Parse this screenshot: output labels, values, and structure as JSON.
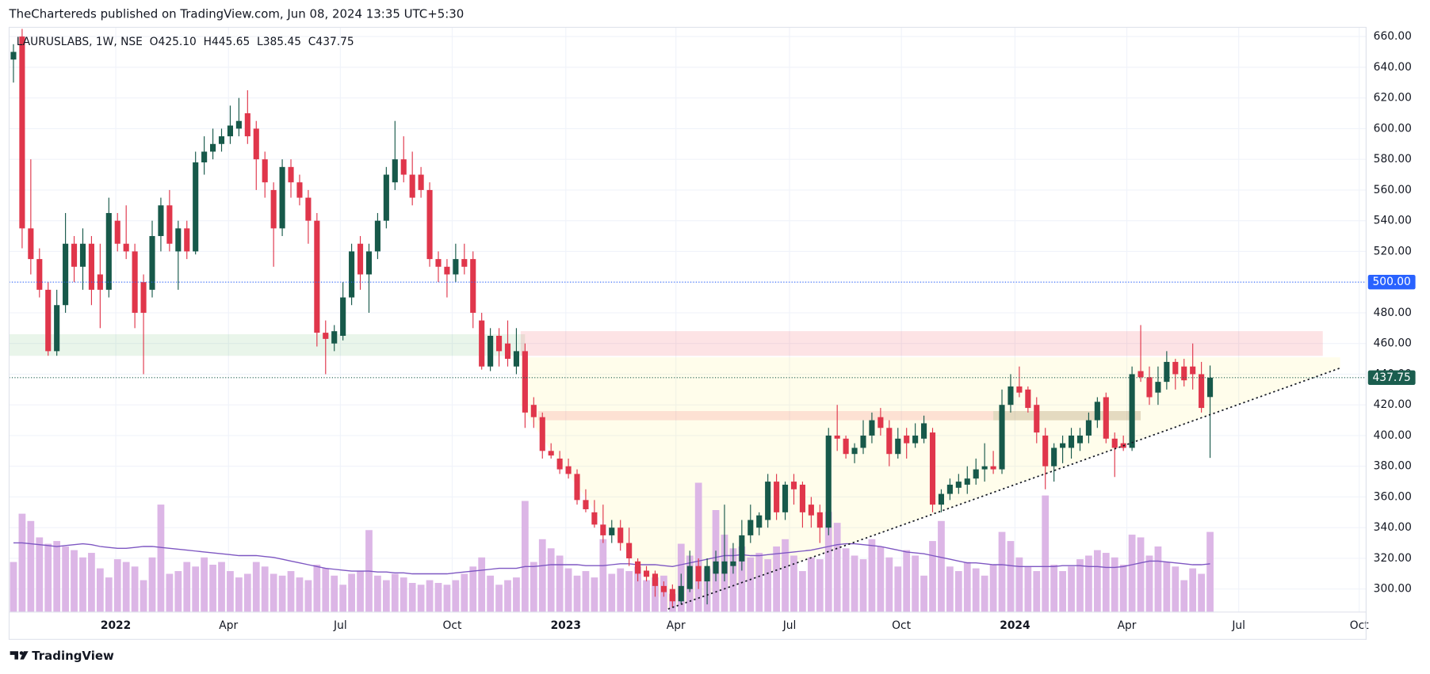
{
  "header": {
    "text": "TheChartereds published on TradingView.com, Jun 08, 2024 13:35 UTC+5:30"
  },
  "footer": {
    "brand": "TradingView"
  },
  "chart_data": {
    "type": "candlestick",
    "legend_text": "LAURUSLABS, 1W, NSE  O425.10  H445.65  L385.45  C437.75",
    "up_color": "#17594a",
    "down_color": "#e0364b",
    "volume_color": "#dcb6e6",
    "volume_ma_color": "#7e57c2",
    "grid": true,
    "xlim": [
      -0.5,
      156
    ],
    "ylim": [
      285,
      666
    ],
    "volume_ylim": [
      0,
      642
    ],
    "yticks": [
      {
        "value": 300,
        "label": "300.00"
      },
      {
        "value": 320,
        "label": "320.00"
      },
      {
        "value": 340,
        "label": "340.00"
      },
      {
        "value": 360,
        "label": "360.00"
      },
      {
        "value": 380,
        "label": "380.00"
      },
      {
        "value": 400,
        "label": "400.00"
      },
      {
        "value": 420,
        "label": "420.00"
      },
      {
        "value": 440,
        "label": "440.00"
      },
      {
        "value": 460,
        "label": "460.00"
      },
      {
        "value": 480,
        "label": "480.00"
      },
      {
        "value": 500,
        "label": "500.00"
      },
      {
        "value": 520,
        "label": "520.00"
      },
      {
        "value": 540,
        "label": "540.00"
      },
      {
        "value": 560,
        "label": "560.00"
      },
      {
        "value": 580,
        "label": "580.00"
      },
      {
        "value": 600,
        "label": "600.00"
      },
      {
        "value": 620,
        "label": "620.00"
      },
      {
        "value": 640,
        "label": "640.00"
      },
      {
        "value": 660,
        "label": "660.00"
      }
    ],
    "xticks": [
      {
        "value": 11.8,
        "label": "2022",
        "bold": true
      },
      {
        "value": 24.8,
        "label": "Apr"
      },
      {
        "value": 37.7,
        "label": "Jul"
      },
      {
        "value": 50.6,
        "label": "Oct"
      },
      {
        "value": 63.7,
        "label": "2023",
        "bold": true
      },
      {
        "value": 76.4,
        "label": "Apr"
      },
      {
        "value": 89.5,
        "label": "Jul"
      },
      {
        "value": 102.4,
        "label": "Oct"
      },
      {
        "value": 115.5,
        "label": "2024",
        "bold": true
      },
      {
        "value": 128.4,
        "label": "Apr"
      },
      {
        "value": 141.3,
        "label": "Jul"
      },
      {
        "value": 155.2,
        "label": "Oct"
      }
    ],
    "hlines": [
      {
        "value": 500,
        "label": "500.00",
        "color": "#2962ff"
      },
      {
        "value": 437.75,
        "label": "437.75",
        "color": "#1b5e4f"
      }
    ],
    "zones": [
      {
        "points": [
          [
            -0.5,
            452
          ],
          [
            59,
            452
          ],
          [
            59,
            466
          ],
          [
            -0.5,
            466
          ]
        ],
        "color": "rgba(76,175,80,0.12)"
      },
      {
        "points": [
          [
            58.5,
            452
          ],
          [
            151,
            452
          ],
          [
            151,
            468
          ],
          [
            58.5,
            468
          ]
        ],
        "color": "rgba(242,54,69,0.14)"
      },
      {
        "points": [
          [
            58.5,
            451
          ],
          [
            153,
            451
          ],
          [
            153,
            444
          ],
          [
            75.5,
            287
          ],
          [
            62,
            390
          ],
          [
            58.5,
            420
          ]
        ],
        "color": "rgba(255,235,59,0.10)"
      },
      {
        "points": [
          [
            60.5,
            410
          ],
          [
            130,
            410
          ],
          [
            130,
            416
          ],
          [
            60.5,
            416
          ]
        ],
        "color": "rgba(242,54,69,0.14)"
      },
      {
        "points": [
          [
            113,
            410
          ],
          [
            130,
            410
          ],
          [
            130,
            416
          ],
          [
            113,
            416
          ]
        ],
        "color": "rgba(76,175,80,0.14)"
      }
    ],
    "trendline": {
      "points": [
        [
          75.5,
          287
        ],
        [
          153,
          444
        ]
      ],
      "color": "#131722"
    },
    "candles": [
      {
        "o": 645,
        "h": 655,
        "l": 630,
        "c": 650
      },
      {
        "o": 660,
        "h": 665,
        "l": 522,
        "c": 535
      },
      {
        "o": 535,
        "h": 580,
        "l": 505,
        "c": 515
      },
      {
        "o": 515,
        "h": 522,
        "l": 490,
        "c": 495
      },
      {
        "o": 495,
        "h": 500,
        "l": 452,
        "c": 455
      },
      {
        "o": 455,
        "h": 495,
        "l": 452,
        "c": 485
      },
      {
        "o": 485,
        "h": 545,
        "l": 480,
        "c": 525
      },
      {
        "o": 525,
        "h": 530,
        "l": 500,
        "c": 510
      },
      {
        "o": 510,
        "h": 535,
        "l": 495,
        "c": 525
      },
      {
        "o": 525,
        "h": 530,
        "l": 485,
        "c": 495
      },
      {
        "o": 505,
        "h": 525,
        "l": 470,
        "c": 495
      },
      {
        "o": 495,
        "h": 555,
        "l": 490,
        "c": 545
      },
      {
        "o": 540,
        "h": 545,
        "l": 520,
        "c": 525
      },
      {
        "o": 525,
        "h": 550,
        "l": 515,
        "c": 520
      },
      {
        "o": 520,
        "h": 525,
        "l": 470,
        "c": 480
      },
      {
        "o": 500,
        "h": 505,
        "l": 440,
        "c": 480
      },
      {
        "o": 495,
        "h": 540,
        "l": 490,
        "c": 530
      },
      {
        "o": 530,
        "h": 555,
        "l": 520,
        "c": 550
      },
      {
        "o": 550,
        "h": 560,
        "l": 520,
        "c": 525
      },
      {
        "o": 520,
        "h": 540,
        "l": 495,
        "c": 535
      },
      {
        "o": 535,
        "h": 540,
        "l": 515,
        "c": 520
      },
      {
        "o": 520,
        "h": 585,
        "l": 518,
        "c": 578
      },
      {
        "o": 578,
        "h": 595,
        "l": 570,
        "c": 585
      },
      {
        "o": 585,
        "h": 600,
        "l": 580,
        "c": 590
      },
      {
        "o": 590,
        "h": 600,
        "l": 585,
        "c": 595
      },
      {
        "o": 595,
        "h": 615,
        "l": 590,
        "c": 602
      },
      {
        "o": 600,
        "h": 620,
        "l": 595,
        "c": 605
      },
      {
        "o": 610,
        "h": 625,
        "l": 590,
        "c": 595
      },
      {
        "o": 600,
        "h": 605,
        "l": 560,
        "c": 580
      },
      {
        "o": 580,
        "h": 585,
        "l": 555,
        "c": 565
      },
      {
        "o": 560,
        "h": 565,
        "l": 510,
        "c": 535
      },
      {
        "o": 535,
        "h": 580,
        "l": 530,
        "c": 575
      },
      {
        "o": 575,
        "h": 580,
        "l": 555,
        "c": 565
      },
      {
        "o": 565,
        "h": 570,
        "l": 550,
        "c": 555
      },
      {
        "o": 555,
        "h": 560,
        "l": 525,
        "c": 540
      },
      {
        "o": 540,
        "h": 545,
        "l": 458,
        "c": 467
      },
      {
        "o": 467,
        "h": 475,
        "l": 440,
        "c": 463
      },
      {
        "o": 460,
        "h": 472,
        "l": 455,
        "c": 468
      },
      {
        "o": 465,
        "h": 500,
        "l": 462,
        "c": 490
      },
      {
        "o": 490,
        "h": 525,
        "l": 485,
        "c": 520
      },
      {
        "o": 525,
        "h": 530,
        "l": 495,
        "c": 505
      },
      {
        "o": 505,
        "h": 525,
        "l": 480,
        "c": 520
      },
      {
        "o": 520,
        "h": 545,
        "l": 515,
        "c": 540
      },
      {
        "o": 540,
        "h": 575,
        "l": 535,
        "c": 570
      },
      {
        "o": 565,
        "h": 605,
        "l": 560,
        "c": 580
      },
      {
        "o": 580,
        "h": 595,
        "l": 565,
        "c": 570
      },
      {
        "o": 570,
        "h": 585,
        "l": 550,
        "c": 555
      },
      {
        "o": 570,
        "h": 575,
        "l": 555,
        "c": 560
      },
      {
        "o": 560,
        "h": 565,
        "l": 510,
        "c": 515
      },
      {
        "o": 515,
        "h": 520,
        "l": 500,
        "c": 510
      },
      {
        "o": 510,
        "h": 515,
        "l": 490,
        "c": 505
      },
      {
        "o": 505,
        "h": 525,
        "l": 500,
        "c": 515
      },
      {
        "o": 515,
        "h": 525,
        "l": 505,
        "c": 510
      },
      {
        "o": 515,
        "h": 520,
        "l": 470,
        "c": 480
      },
      {
        "o": 475,
        "h": 480,
        "l": 443,
        "c": 445
      },
      {
        "o": 445,
        "h": 470,
        "l": 442,
        "c": 465
      },
      {
        "o": 465,
        "h": 470,
        "l": 445,
        "c": 455
      },
      {
        "o": 460,
        "h": 475,
        "l": 445,
        "c": 450
      },
      {
        "o": 445,
        "h": 470,
        "l": 440,
        "c": 455
      },
      {
        "o": 455,
        "h": 460,
        "l": 405,
        "c": 415
      },
      {
        "o": 420,
        "h": 425,
        "l": 405,
        "c": 412
      },
      {
        "o": 412,
        "h": 415,
        "l": 385,
        "c": 390
      },
      {
        "o": 390,
        "h": 395,
        "l": 385,
        "c": 387
      },
      {
        "o": 385,
        "h": 390,
        "l": 375,
        "c": 378
      },
      {
        "o": 380,
        "h": 385,
        "l": 372,
        "c": 375
      },
      {
        "o": 375,
        "h": 378,
        "l": 355,
        "c": 358
      },
      {
        "o": 358,
        "h": 365,
        "l": 350,
        "c": 352
      },
      {
        "o": 350,
        "h": 358,
        "l": 340,
        "c": 342
      },
      {
        "o": 342,
        "h": 355,
        "l": 330,
        "c": 335
      },
      {
        "o": 335,
        "h": 345,
        "l": 330,
        "c": 340
      },
      {
        "o": 340,
        "h": 345,
        "l": 325,
        "c": 330
      },
      {
        "o": 330,
        "h": 340,
        "l": 315,
        "c": 320
      },
      {
        "o": 318,
        "h": 320,
        "l": 305,
        "c": 310
      },
      {
        "o": 312,
        "h": 315,
        "l": 305,
        "c": 308
      },
      {
        "o": 310,
        "h": 312,
        "l": 295,
        "c": 302
      },
      {
        "o": 302,
        "h": 305,
        "l": 295,
        "c": 298
      },
      {
        "o": 300,
        "h": 303,
        "l": 288,
        "c": 292
      },
      {
        "o": 292,
        "h": 310,
        "l": 290,
        "c": 302
      },
      {
        "o": 300,
        "h": 325,
        "l": 298,
        "c": 315
      },
      {
        "o": 315,
        "h": 320,
        "l": 300,
        "c": 305
      },
      {
        "o": 305,
        "h": 320,
        "l": 290,
        "c": 315
      },
      {
        "o": 310,
        "h": 325,
        "l": 305,
        "c": 318
      },
      {
        "o": 310,
        "h": 355,
        "l": 305,
        "c": 318
      },
      {
        "o": 315,
        "h": 330,
        "l": 310,
        "c": 318
      },
      {
        "o": 318,
        "h": 345,
        "l": 312,
        "c": 335
      },
      {
        "o": 335,
        "h": 355,
        "l": 330,
        "c": 345
      },
      {
        "o": 340,
        "h": 350,
        "l": 335,
        "c": 348
      },
      {
        "o": 345,
        "h": 375,
        "l": 340,
        "c": 370
      },
      {
        "o": 370,
        "h": 375,
        "l": 345,
        "c": 350
      },
      {
        "o": 350,
        "h": 370,
        "l": 345,
        "c": 368
      },
      {
        "o": 370,
        "h": 375,
        "l": 355,
        "c": 365
      },
      {
        "o": 368,
        "h": 370,
        "l": 340,
        "c": 350
      },
      {
        "o": 355,
        "h": 360,
        "l": 340,
        "c": 348
      },
      {
        "o": 350,
        "h": 355,
        "l": 330,
        "c": 340
      },
      {
        "o": 340,
        "h": 405,
        "l": 335,
        "c": 400
      },
      {
        "o": 400,
        "h": 420,
        "l": 390,
        "c": 398
      },
      {
        "o": 398,
        "h": 400,
        "l": 385,
        "c": 388
      },
      {
        "o": 388,
        "h": 395,
        "l": 382,
        "c": 392
      },
      {
        "o": 392,
        "h": 410,
        "l": 388,
        "c": 400
      },
      {
        "o": 400,
        "h": 415,
        "l": 395,
        "c": 410
      },
      {
        "o": 412,
        "h": 418,
        "l": 400,
        "c": 405
      },
      {
        "o": 405,
        "h": 410,
        "l": 380,
        "c": 388
      },
      {
        "o": 388,
        "h": 405,
        "l": 385,
        "c": 398
      },
      {
        "o": 400,
        "h": 405,
        "l": 385,
        "c": 395
      },
      {
        "o": 395,
        "h": 408,
        "l": 392,
        "c": 400
      },
      {
        "o": 398,
        "h": 413,
        "l": 395,
        "c": 408
      },
      {
        "o": 402,
        "h": 405,
        "l": 350,
        "c": 355
      },
      {
        "o": 355,
        "h": 365,
        "l": 350,
        "c": 362
      },
      {
        "o": 362,
        "h": 372,
        "l": 358,
        "c": 368
      },
      {
        "o": 366,
        "h": 375,
        "l": 362,
        "c": 370
      },
      {
        "o": 368,
        "h": 380,
        "l": 362,
        "c": 372
      },
      {
        "o": 372,
        "h": 385,
        "l": 368,
        "c": 378
      },
      {
        "o": 378,
        "h": 395,
        "l": 370,
        "c": 380
      },
      {
        "o": 380,
        "h": 390,
        "l": 375,
        "c": 378
      },
      {
        "o": 378,
        "h": 430,
        "l": 375,
        "c": 420
      },
      {
        "o": 420,
        "h": 440,
        "l": 415,
        "c": 432
      },
      {
        "o": 432,
        "h": 445,
        "l": 425,
        "c": 428
      },
      {
        "o": 430,
        "h": 432,
        "l": 415,
        "c": 418
      },
      {
        "o": 420,
        "h": 425,
        "l": 395,
        "c": 402
      },
      {
        "o": 400,
        "h": 405,
        "l": 365,
        "c": 380
      },
      {
        "o": 380,
        "h": 395,
        "l": 370,
        "c": 392
      },
      {
        "o": 392,
        "h": 400,
        "l": 382,
        "c": 395
      },
      {
        "o": 392,
        "h": 405,
        "l": 385,
        "c": 400
      },
      {
        "o": 395,
        "h": 405,
        "l": 390,
        "c": 400
      },
      {
        "o": 400,
        "h": 415,
        "l": 395,
        "c": 410
      },
      {
        "o": 410,
        "h": 425,
        "l": 405,
        "c": 422
      },
      {
        "o": 425,
        "h": 428,
        "l": 395,
        "c": 398
      },
      {
        "o": 398,
        "h": 402,
        "l": 373,
        "c": 392
      },
      {
        "o": 395,
        "h": 400,
        "l": 390,
        "c": 392
      },
      {
        "o": 392,
        "h": 445,
        "l": 390,
        "c": 440
      },
      {
        "o": 442,
        "h": 472,
        "l": 435,
        "c": 438
      },
      {
        "o": 438,
        "h": 445,
        "l": 420,
        "c": 425
      },
      {
        "o": 428,
        "h": 445,
        "l": 420,
        "c": 435
      },
      {
        "o": 435,
        "h": 455,
        "l": 430,
        "c": 448
      },
      {
        "o": 448,
        "h": 450,
        "l": 430,
        "c": 440
      },
      {
        "o": 445,
        "h": 450,
        "l": 432,
        "c": 436
      },
      {
        "o": 445,
        "h": 460,
        "l": 430,
        "c": 440
      },
      {
        "o": 440,
        "h": 448,
        "l": 415,
        "c": 418
      },
      {
        "o": 425.1,
        "h": 445.65,
        "l": 385.45,
        "c": 437.75
      }
    ],
    "volume": [
      55,
      108,
      100,
      82,
      75,
      78,
      72,
      68,
      60,
      65,
      48,
      38,
      58,
      55,
      50,
      35,
      60,
      118,
      42,
      45,
      55,
      50,
      60,
      52,
      55,
      45,
      38,
      42,
      55,
      50,
      42,
      40,
      45,
      38,
      35,
      52,
      48,
      40,
      30,
      42,
      45,
      90,
      40,
      35,
      42,
      38,
      32,
      30,
      35,
      32,
      30,
      35,
      42,
      50,
      60,
      40,
      30,
      35,
      38,
      122,
      55,
      80,
      70,
      62,
      48,
      40,
      45,
      38,
      80,
      42,
      48,
      45,
      50,
      35,
      38,
      40,
      20,
      75,
      62,
      142,
      48,
      112,
      85,
      70,
      72,
      60,
      65,
      58,
      72,
      80,
      62,
      45,
      60,
      58,
      110,
      98,
      70,
      62,
      58,
      80,
      72,
      60,
      50,
      68,
      62,
      40,
      78,
      100,
      50,
      45,
      55,
      48,
      40,
      52,
      88,
      78,
      60,
      50,
      45,
      128,
      52,
      45,
      50,
      58,
      62,
      68,
      65,
      60,
      52,
      85,
      82,
      62,
      72,
      55,
      50,
      35,
      48,
      42,
      88
    ],
    "volume_ma": [
      76,
      76,
      75,
      74,
      73,
      72,
      73,
      74,
      75,
      74,
      72,
      71,
      70,
      70,
      71,
      72,
      72,
      71,
      70,
      69,
      68,
      67,
      66,
      65,
      64,
      63,
      62,
      62,
      62,
      61,
      60,
      58,
      56,
      54,
      52,
      50,
      48,
      47,
      46,
      45,
      45,
      45,
      44,
      44,
      43,
      43,
      42,
      42,
      42,
      42,
      42,
      43,
      44,
      45,
      46,
      47,
      48,
      48,
      48,
      50,
      50,
      51,
      52,
      52,
      52,
      52,
      51,
      51,
      51,
      52,
      53,
      53,
      52,
      52,
      52,
      51,
      50,
      52,
      54,
      56,
      58,
      60,
      62,
      62,
      63,
      62,
      62,
      63,
      64,
      65,
      66,
      67,
      68,
      70,
      72,
      74,
      75,
      75,
      74,
      73,
      72,
      70,
      68,
      66,
      65,
      64,
      62,
      60,
      58,
      56,
      54,
      54,
      53,
      52,
      52,
      51,
      50,
      50,
      50,
      50,
      50,
      51,
      51,
      51,
      50,
      50,
      49,
      49,
      50,
      52,
      54,
      56,
      56,
      55,
      54,
      53,
      52,
      52,
      53
    ]
  }
}
